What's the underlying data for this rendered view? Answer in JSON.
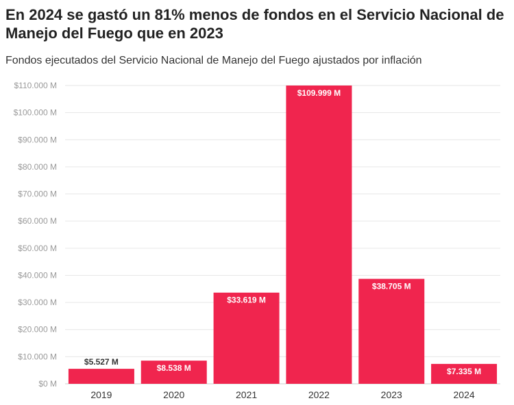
{
  "chart_data": {
    "type": "bar",
    "title": "En 2024 se gastó un 81% menos de fondos en el Servicio Nacional de Manejo del Fuego que en 2023",
    "subtitle": "Fondos ejecutados del Servicio Nacional de Manejo del Fuego ajustados por inflación",
    "categories": [
      "2019",
      "2020",
      "2021",
      "2022",
      "2023",
      "2024"
    ],
    "values": [
      5527,
      8538,
      33619,
      109999,
      38705,
      7335
    ],
    "data_labels": [
      "$5.527 M",
      "$8.538 M",
      "$33.619 M",
      "$109.999 M",
      "$38.705 M",
      "$7.335 M"
    ],
    "ylim": [
      0,
      110000
    ],
    "yticks": [
      0,
      10000,
      20000,
      30000,
      40000,
      50000,
      60000,
      70000,
      80000,
      90000,
      100000,
      110000
    ],
    "ytick_labels": [
      "$0 M",
      "$10.000 M",
      "$20.000 M",
      "$30.000 M",
      "$40.000 M",
      "$50.000 M",
      "$60.000 M",
      "$70.000 M",
      "$80.000 M",
      "$90.000 M",
      "$100.000 M",
      "$110.000 M"
    ],
    "grid": true,
    "bar_color": "#f0254e",
    "xlabel": "",
    "ylabel": ""
  }
}
